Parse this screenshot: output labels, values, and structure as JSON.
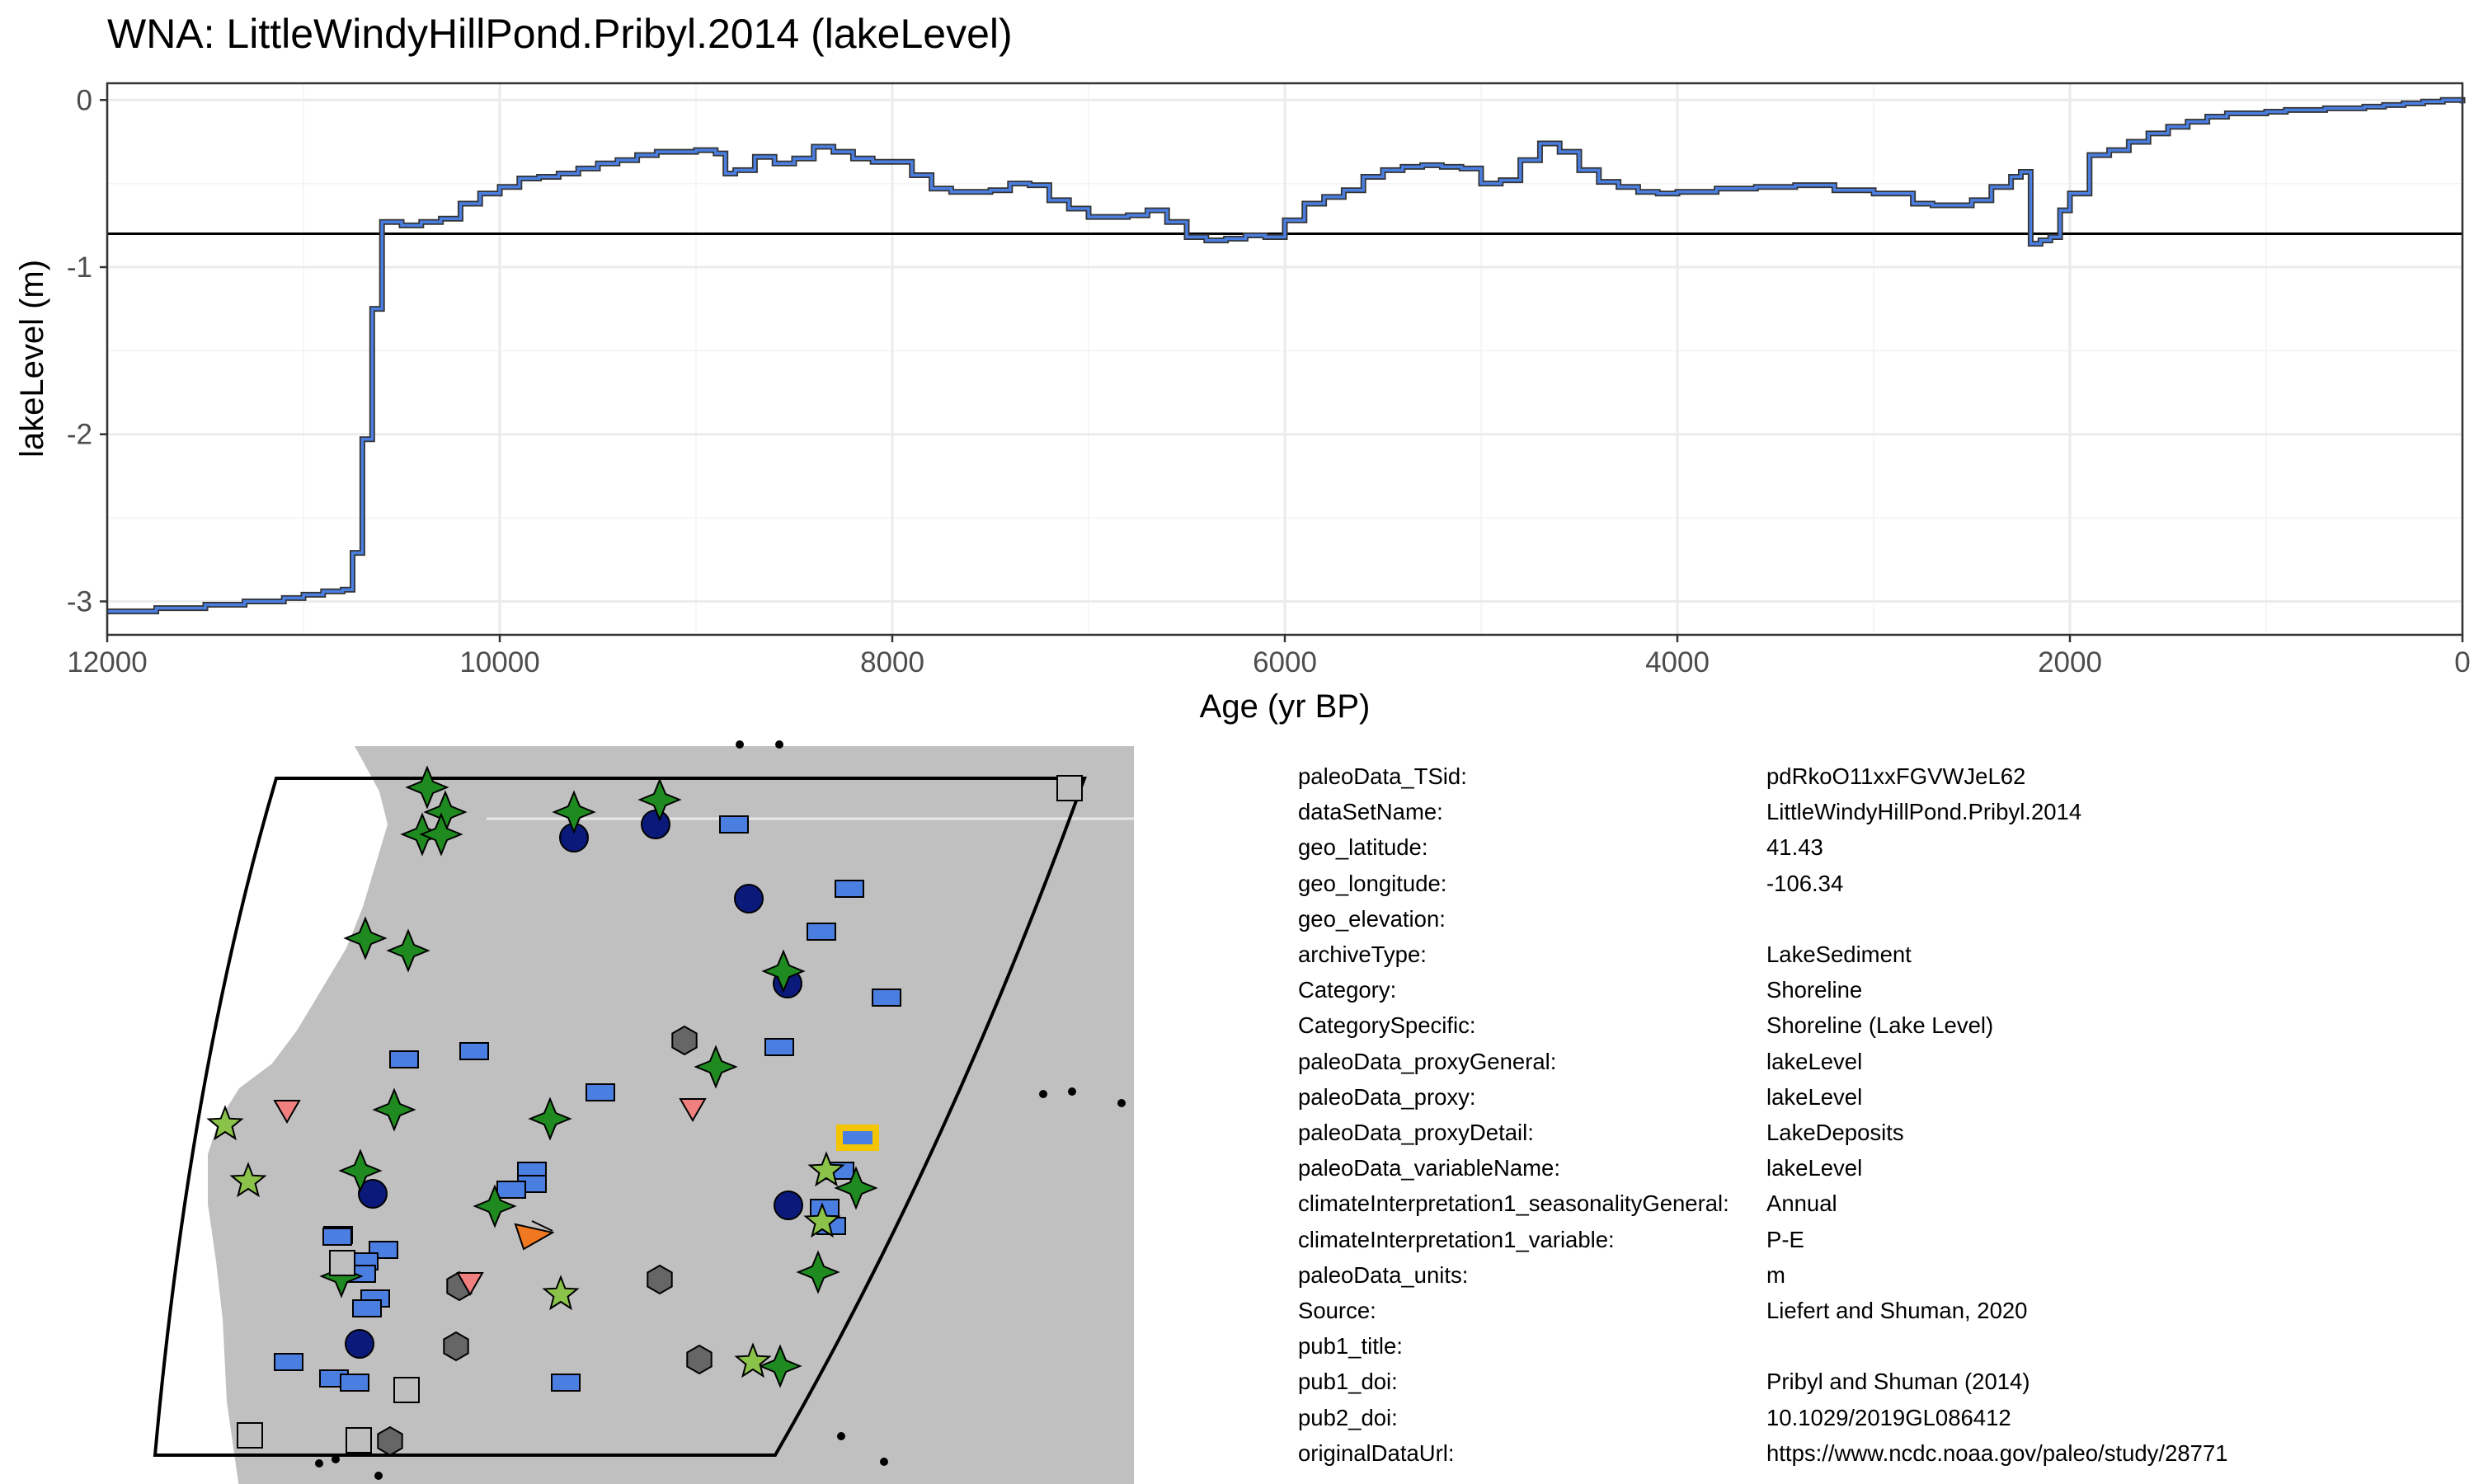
{
  "chart_data": {
    "type": "line",
    "title": "WNA: LittleWindyHillPond.Pribyl.2014 (lakeLevel)",
    "xlabel": "Age (yr BP)",
    "ylabel": "lakeLevel (m)",
    "xlim": [
      12000,
      0
    ],
    "ylim": [
      -3.2,
      0.1
    ],
    "x_reversed": true,
    "x_ticks": [
      12000,
      10000,
      8000,
      6000,
      4000,
      2000,
      0
    ],
    "x_tick_labels": [
      "12000",
      "10000",
      "8000",
      "6000",
      "4000",
      "2000",
      "0"
    ],
    "y_ticks": [
      -3,
      -2,
      -1,
      0
    ],
    "y_tick_labels": [
      "-3",
      "-2",
      "-1",
      "0"
    ],
    "grid": true,
    "reference_line_y": -0.8,
    "series": [
      {
        "style": "step",
        "color": "#4a7ee0",
        "x": [
          12000,
          11750,
          11500,
          11300,
          11100,
          11000,
          10900,
          10800,
          10750,
          10700,
          10650,
          10600,
          10500,
          10400,
          10300,
          10200,
          10100,
          10000,
          9900,
          9800,
          9700,
          9600,
          9500,
          9400,
          9300,
          9200,
          9100,
          9000,
          8900,
          8850,
          8800,
          8700,
          8600,
          8500,
          8400,
          8300,
          8200,
          8100,
          8000,
          7900,
          7800,
          7700,
          7600,
          7500,
          7400,
          7300,
          7200,
          7100,
          7000,
          6900,
          6800,
          6700,
          6600,
          6500,
          6400,
          6300,
          6200,
          6100,
          6000,
          5900,
          5800,
          5700,
          5600,
          5500,
          5400,
          5300,
          5200,
          5100,
          5000,
          4900,
          4800,
          4700,
          4600,
          4500,
          4400,
          4300,
          4200,
          4100,
          4000,
          3800,
          3600,
          3400,
          3200,
          3000,
          2800,
          2700,
          2600,
          2500,
          2400,
          2300,
          2250,
          2200,
          2150,
          2100,
          2050,
          2000,
          1900,
          1800,
          1700,
          1600,
          1500,
          1400,
          1300,
          1200,
          1100,
          1000,
          900,
          800,
          700,
          600,
          500,
          400,
          300,
          200,
          100,
          0
        ],
        "y": [
          -3.06,
          -3.04,
          -3.02,
          -3.0,
          -2.98,
          -2.96,
          -2.94,
          -2.93,
          -2.71,
          -2.03,
          -1.25,
          -0.73,
          -0.75,
          -0.73,
          -0.71,
          -0.62,
          -0.56,
          -0.52,
          -0.47,
          -0.46,
          -0.44,
          -0.41,
          -0.38,
          -0.36,
          -0.33,
          -0.31,
          -0.31,
          -0.3,
          -0.32,
          -0.44,
          -0.42,
          -0.34,
          -0.38,
          -0.35,
          -0.28,
          -0.31,
          -0.35,
          -0.37,
          -0.37,
          -0.45,
          -0.53,
          -0.55,
          -0.55,
          -0.54,
          -0.5,
          -0.51,
          -0.6,
          -0.65,
          -0.7,
          -0.7,
          -0.69,
          -0.66,
          -0.73,
          -0.82,
          -0.84,
          -0.83,
          -0.81,
          -0.82,
          -0.72,
          -0.62,
          -0.58,
          -0.54,
          -0.46,
          -0.42,
          -0.4,
          -0.39,
          -0.4,
          -0.41,
          -0.5,
          -0.48,
          -0.36,
          -0.26,
          -0.31,
          -0.42,
          -0.49,
          -0.52,
          -0.55,
          -0.56,
          -0.55,
          -0.53,
          -0.52,
          -0.51,
          -0.54,
          -0.56,
          -0.62,
          -0.63,
          -0.63,
          -0.6,
          -0.52,
          -0.46,
          -0.43,
          -0.86,
          -0.84,
          -0.82,
          -0.66,
          -0.56,
          -0.33,
          -0.3,
          -0.25,
          -0.2,
          -0.16,
          -0.13,
          -0.1,
          -0.08,
          -0.08,
          -0.07,
          -0.06,
          -0.06,
          -0.05,
          -0.05,
          -0.04,
          -0.03,
          -0.02,
          -0.01,
          0.0,
          -0.02
        ]
      }
    ]
  },
  "map": {
    "legend_colors": {
      "land": "#c0c0c0",
      "lake_level": "#4a7ee0",
      "pollen": "#1f8a1f",
      "other_star": "#8bc34a",
      "circle": "#0b1a7a",
      "hexagon": "#666666",
      "square": "#bfbfbf",
      "triangle": "#f08080",
      "highlight": "#f5c400",
      "orange": "#f07820"
    }
  },
  "metadata": [
    {
      "key": "paleoData_TSid:",
      "value": "pdRkoO11xxFGVWJeL62"
    },
    {
      "key": "dataSetName:",
      "value": "LittleWindyHillPond.Pribyl.2014"
    },
    {
      "key": "geo_latitude:",
      "value": "41.43"
    },
    {
      "key": "geo_longitude:",
      "value": "-106.34"
    },
    {
      "key": "geo_elevation:",
      "value": ""
    },
    {
      "key": "archiveType:",
      "value": "LakeSediment"
    },
    {
      "key": "Category:",
      "value": "Shoreline"
    },
    {
      "key": "CategorySpecific:",
      "value": "Shoreline (Lake Level)"
    },
    {
      "key": "paleoData_proxyGeneral:",
      "value": "lakeLevel"
    },
    {
      "key": "paleoData_proxy:",
      "value": "lakeLevel"
    },
    {
      "key": "paleoData_proxyDetail:",
      "value": "LakeDeposits"
    },
    {
      "key": "paleoData_variableName:",
      "value": "lakeLevel"
    },
    {
      "key": "climateInterpretation1_seasonalityGeneral:",
      "value": "Annual"
    },
    {
      "key": "climateInterpretation1_variable:",
      "value": "P-E"
    },
    {
      "key": "paleoData_units:",
      "value": "m"
    },
    {
      "key": "Source:",
      "value": "Liefert and Shuman, 2020"
    },
    {
      "key": "pub1_title:",
      "value": ""
    },
    {
      "key": "pub1_doi:",
      "value": "Pribyl and Shuman (2014)"
    },
    {
      "key": "pub2_doi:",
      "value": "10.1029/2019GL086412"
    },
    {
      "key": "originalDataUrl:",
      "value": "https://www.ncdc.noaa.gov/paleo/study/28771"
    }
  ]
}
